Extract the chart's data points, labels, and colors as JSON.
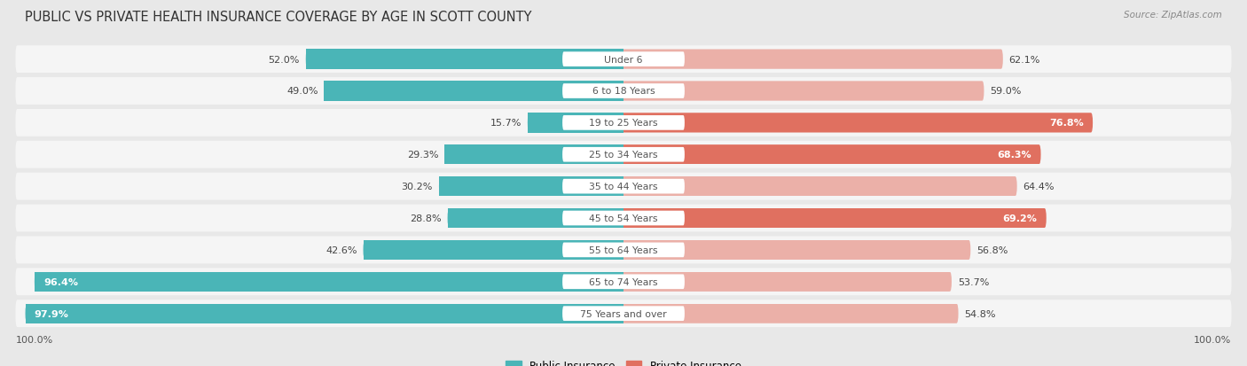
{
  "title": "PUBLIC VS PRIVATE HEALTH INSURANCE COVERAGE BY AGE IN SCOTT COUNTY",
  "source": "Source: ZipAtlas.com",
  "categories": [
    "Under 6",
    "6 to 18 Years",
    "19 to 25 Years",
    "25 to 34 Years",
    "35 to 44 Years",
    "45 to 54 Years",
    "55 to 64 Years",
    "65 to 74 Years",
    "75 Years and over"
  ],
  "public": [
    52.0,
    49.0,
    15.7,
    29.3,
    30.2,
    28.8,
    42.6,
    96.4,
    97.9
  ],
  "private": [
    62.1,
    59.0,
    76.8,
    68.3,
    64.4,
    69.2,
    56.8,
    53.7,
    54.8
  ],
  "public_color": "#4ab5b7",
  "private_color_strong": "#e07060",
  "private_color_light": "#ebb0a8",
  "bg_color": "#e8e8e8",
  "row_bg_color": "#f5f5f5",
  "max_val": 100.0,
  "legend_public": "Public Insurance",
  "legend_private": "Private Insurance",
  "title_fontsize": 10.5,
  "source_fontsize": 7.5,
  "bar_label_fontsize": 8.0,
  "cat_label_fontsize": 7.8,
  "bar_height": 0.62,
  "x_axis_label_left": "100.0%",
  "x_axis_label_right": "100.0%",
  "private_strong_threshold": 65.0
}
